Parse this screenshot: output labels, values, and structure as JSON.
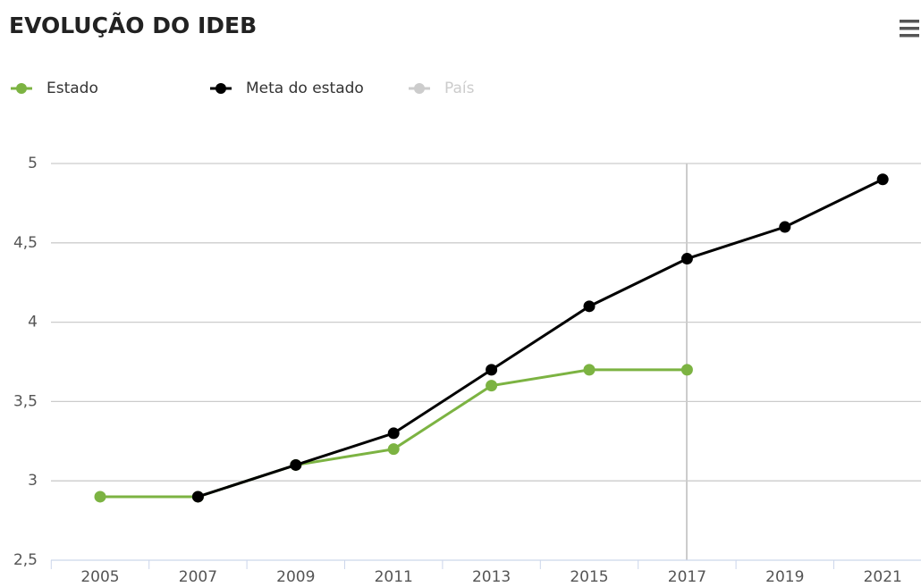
{
  "chart_data": {
    "type": "line",
    "title": "EVOLUÇÃO DO IDEB",
    "categories": [
      "2005",
      "2007",
      "2009",
      "2011",
      "2013",
      "2015",
      "2017",
      "2019",
      "2021"
    ],
    "series": [
      {
        "name": "Estado",
        "color": "#7cb342",
        "values": [
          2.9,
          2.9,
          3.1,
          3.2,
          3.6,
          3.7,
          3.7,
          null,
          null
        ]
      },
      {
        "name": "Meta do estado",
        "color": "#000000",
        "values": [
          null,
          2.9,
          3.1,
          3.3,
          3.7,
          4.1,
          4.4,
          4.6,
          4.9
        ]
      },
      {
        "name": "País",
        "color": "#cccccc",
        "values": [
          null,
          null,
          null,
          null,
          null,
          null,
          null,
          null,
          null
        ]
      }
    ],
    "ylim": [
      2.5,
      5
    ],
    "yticks": [
      {
        "value": 2.5,
        "label": "2,5"
      },
      3,
      {
        "value": 3.5,
        "label": "3,5"
      },
      4,
      {
        "value": 4.5,
        "label": "4,5"
      },
      5
    ],
    "grid": true
  }
}
